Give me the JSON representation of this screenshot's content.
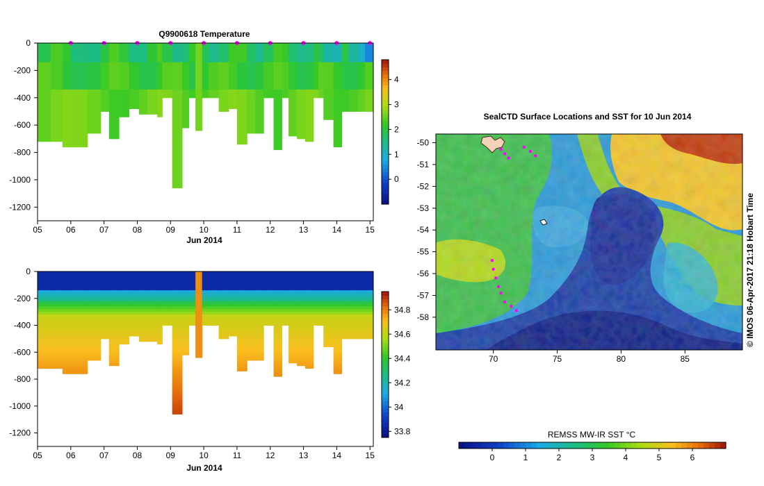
{
  "colors": {
    "background": "#ffffff",
    "axis": "#000000",
    "float_marker": "#ff00ff",
    "land": "#f4d2b8"
  },
  "chart_data": [
    {
      "type": "heatmap",
      "title": "Q9900618  Temperature",
      "xlabel": "Jun 2014",
      "ylabel": "",
      "x_ticks": [
        "05",
        "06",
        "07",
        "08",
        "09",
        "10",
        "11",
        "12",
        "13",
        "14",
        "15"
      ],
      "xlim": [
        5,
        15.1
      ],
      "y_ticks": [
        0,
        -200,
        -400,
        -600,
        -800,
        -1000,
        -1200
      ],
      "ylim": [
        -1300,
        0
      ],
      "colorbar": {
        "ticks": [
          0,
          1,
          2,
          3,
          4
        ],
        "range": [
          -1,
          4.8
        ]
      },
      "profile_times": [
        5.0,
        5.4,
        5.75,
        6.0,
        6.5,
        6.9,
        7.15,
        7.45,
        7.75,
        8.05,
        8.3,
        8.6,
        8.75,
        9.05,
        9.35,
        9.55,
        9.75,
        9.95,
        10.15,
        10.45,
        10.75,
        11.0,
        11.3,
        11.55,
        11.8,
        12.1,
        12.35,
        12.55,
        12.8,
        13.05,
        13.3,
        13.45,
        13.6,
        13.9,
        14.15,
        14.35,
        14.65,
        14.85
      ],
      "profile_max_depth": [
        -710,
        -710,
        -760,
        -760,
        -650,
        -500,
        -700,
        -540,
        -480,
        -520,
        -520,
        -540,
        -400,
        -1050,
        -620,
        -400,
        -630,
        -400,
        -400,
        -500,
        -480,
        -740,
        -650,
        -650,
        -400,
        -780,
        -400,
        -670,
        -700,
        -710,
        -400,
        -400,
        -550,
        -760,
        -490,
        -490,
        -490,
        -490
      ],
      "surface_markers": [
        6,
        7,
        8,
        9,
        10,
        11,
        12,
        13,
        14,
        15
      ]
    },
    {
      "type": "heatmap",
      "title": "",
      "xlabel": "Jun 2014",
      "ylabel": "",
      "x_ticks": [
        "05",
        "06",
        "07",
        "08",
        "09",
        "10",
        "11",
        "12",
        "13",
        "14",
        "15"
      ],
      "xlim": [
        5,
        15.1
      ],
      "y_ticks": [
        0,
        -200,
        -400,
        -600,
        -800,
        -1000,
        -1200
      ],
      "ylim": [
        -1300,
        0
      ],
      "colorbar": {
        "ticks": [
          33.8,
          34,
          34.2,
          34.4,
          34.6,
          34.8
        ],
        "range": [
          33.75,
          34.95
        ]
      }
    },
    {
      "type": "heatmap",
      "title": "SealCTD Surface Locations and SST for 10 Jun 2014",
      "xlabel": "",
      "ylabel": "",
      "x_ticks": [
        70,
        75,
        80,
        85
      ],
      "xlim": [
        65.5,
        89.5
      ],
      "y_ticks": [
        -50,
        -51,
        -52,
        -53,
        -54,
        -55,
        -56,
        -57,
        -58
      ],
      "ylim": [
        -59.5,
        -49.6
      ],
      "colorbar": {
        "label": "REMSS MW-IR SST °C",
        "ticks": [
          0,
          1,
          2,
          3,
          4,
          5,
          6
        ],
        "range": [
          -1,
          7
        ]
      },
      "side_note": "© IMOS 06-Apr-2017 21:18 Hobart Time",
      "float_track": [
        [
          70.6,
          -50.3
        ],
        [
          70.9,
          -50.5
        ],
        [
          71.2,
          -50.7
        ],
        [
          72.4,
          -50.2
        ],
        [
          72.9,
          -50.4
        ],
        [
          73.3,
          -50.6
        ],
        [
          69.9,
          -55.4
        ],
        [
          70.0,
          -55.8
        ],
        [
          70.2,
          -56.2
        ],
        [
          70.4,
          -56.6
        ],
        [
          70.6,
          -56.9
        ],
        [
          70.9,
          -57.3
        ],
        [
          71.4,
          -57.5
        ],
        [
          71.8,
          -57.7
        ]
      ]
    }
  ]
}
